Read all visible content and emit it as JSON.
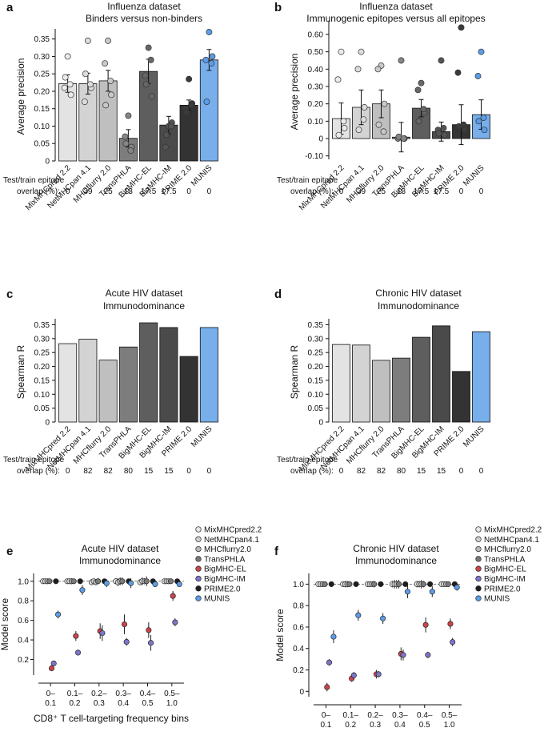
{
  "figure": {
    "overlap_label_line1": "Test/train epitope",
    "overlap_label_line2": "overlap (%):"
  },
  "chart_data": [
    {
      "id": "a",
      "letter": "a",
      "type": "bar",
      "title": [
        "Influenza dataset",
        "Binders versus non-binders"
      ],
      "ylabel": "Average precision",
      "ylim": [
        0,
        0.37
      ],
      "yticks": [
        0,
        0.05,
        0.1,
        0.15,
        0.2,
        0.25,
        0.3,
        0.35
      ],
      "ytick_labels": [
        "0",
        "0.05",
        "0.10",
        "0.15",
        "0.20",
        "0.25",
        "0.30",
        "0.35"
      ],
      "categories": [
        "MixMHCpred 2.2",
        "NetMHCpan 4.1",
        "MHCflurry 2.0",
        "TransPHLA",
        "BigMHC-EL",
        "BigMHC-IM",
        "PRIME 2.0",
        "MUNIS"
      ],
      "values": [
        0.222,
        0.222,
        0.23,
        0.065,
        0.257,
        0.103,
        0.16,
        0.29
      ],
      "errors": [
        0.025,
        0.03,
        0.03,
        0.025,
        0.035,
        0.025,
        0.015,
        0.03
      ],
      "points": [
        [
          0.3,
          0.21,
          0.19,
          0.24,
          0.22
        ],
        [
          0.345,
          0.17,
          0.21,
          0.25,
          0.22
        ],
        [
          0.345,
          0.28,
          0.19,
          0.16,
          0.23
        ],
        [
          0.13,
          0.07,
          0.04,
          0.05,
          0.03
        ],
        [
          0.325,
          0.245,
          0.185,
          0.22,
          0.29
        ],
        [
          0.1,
          0.04,
          0.11,
          0.075,
          0.1
        ],
        [
          0.235,
          0.15,
          0.165,
          0.14,
          0.16
        ],
        [
          0.37,
          0.29,
          0.3,
          0.17,
          0.28
        ]
      ],
      "colors": [
        "#e3e3e3",
        "#d3d3d3",
        "#bfbfbf",
        "#7d7d7d",
        "#5e5e5e",
        "#4a4a4a",
        "#333333",
        "#78aeea"
      ],
      "point_colors": [
        "#ebebeb",
        "#dcdcdc",
        "#c9c9c9",
        "#868686",
        "#676767",
        "#545454",
        "#3b3b3b",
        "#5b9de8"
      ],
      "overlap": [
        "0",
        "39",
        "25",
        "13",
        "17.5",
        "17.5",
        "0",
        "0"
      ]
    },
    {
      "id": "b",
      "letter": "b",
      "type": "bar",
      "title": [
        "Influenza dataset",
        "Immunogenic epitopes versus all epitopes"
      ],
      "ylabel": "Average precision",
      "ylim": [
        -0.12,
        0.66
      ],
      "yticks": [
        -0.1,
        0,
        0.1,
        0.2,
        0.3,
        0.4,
        0.5,
        0.6
      ],
      "ytick_labels": [
        "-0.10",
        "0",
        "0.10",
        "0.20",
        "0.30",
        "0.40",
        "0.50",
        "0.60"
      ],
      "categories": [
        "MixMHCpred 2.2",
        "NetMHCpan 4.1",
        "MHCflurry 2.0",
        "TransPHLA",
        "BigMHC-EL",
        "BigMHC-IM",
        "PRIME 2.0",
        "MUNIS"
      ],
      "values": [
        0.115,
        0.18,
        0.2,
        0.008,
        0.175,
        0.04,
        0.08,
        0.138
      ],
      "errors": [
        0.09,
        0.1,
        0.08,
        0.085,
        0.05,
        0.055,
        0.115,
        0.085
      ],
      "points": [
        [
          0.5,
          0.34,
          0.06,
          0.02,
          0.1
        ],
        [
          0.5,
          0.4,
          0.18,
          0.05,
          0.11
        ],
        [
          0.42,
          0.4,
          0.2,
          0.08,
          0.04
        ],
        [
          0.45,
          0.0,
          0.0,
          0.01,
          0.0
        ],
        [
          0.32,
          0.28,
          0.15,
          0.1,
          0.17
        ],
        [
          0.45,
          0.05,
          0.02,
          0.03,
          0.06
        ],
        [
          0.64,
          0.38,
          0.05,
          0.07,
          0.08
        ],
        [
          0.5,
          0.36,
          0.05,
          0.1,
          0.12
        ]
      ],
      "colors": [
        "#e3e3e3",
        "#d3d3d3",
        "#bfbfbf",
        "#7d7d7d",
        "#5e5e5e",
        "#4a4a4a",
        "#333333",
        "#78aeea"
      ],
      "point_colors": [
        "#ebebeb",
        "#dcdcdc",
        "#c9c9c9",
        "#868686",
        "#676767",
        "#545454",
        "#3b3b3b",
        "#5b9de8"
      ],
      "overlap": [
        "0",
        "39",
        "25",
        "13",
        "17.5",
        "17.5",
        "0",
        "0"
      ]
    },
    {
      "id": "c",
      "letter": "c",
      "type": "bar",
      "title": [
        "Acute HIV dataset",
        "Immunodominance"
      ],
      "ylabel": "Spearman R",
      "ylim": [
        0,
        0.36
      ],
      "yticks": [
        0,
        0.05,
        0.1,
        0.15,
        0.2,
        0.25,
        0.3,
        0.35
      ],
      "ytick_labels": [
        "0",
        "0.05",
        "0.10",
        "0.15",
        "0.20",
        "0.25",
        "0.30",
        "0.35"
      ],
      "categories": [
        "MixMHCpred 2.2",
        "NetMHCpan 4.1",
        "MHCflurry 2.0",
        "TransPHLA",
        "BigMHC-EL",
        "BigMHC-IM",
        "PRIME 2.0",
        "MUNIS"
      ],
      "values": [
        0.282,
        0.298,
        0.223,
        0.27,
        0.357,
        0.34,
        0.236,
        0.34
      ],
      "colors": [
        "#e3e3e3",
        "#d3d3d3",
        "#bfbfbf",
        "#7d7d7d",
        "#5e5e5e",
        "#4a4a4a",
        "#333333",
        "#78aeea"
      ],
      "overlap": [
        "0",
        "82",
        "82",
        "80",
        "15",
        "15",
        "0",
        "0"
      ]
    },
    {
      "id": "d",
      "letter": "d",
      "type": "bar",
      "title": [
        "Chronic HIV dataset",
        "Immunodominance"
      ],
      "ylabel": "Spearman R",
      "ylim": [
        0,
        0.36
      ],
      "yticks": [
        0,
        0.05,
        0.1,
        0.15,
        0.2,
        0.25,
        0.3,
        0.35
      ],
      "ytick_labels": [
        "0",
        "0.05",
        "0.10",
        "0.15",
        "0.20",
        "0.25",
        "0.30",
        "0.35"
      ],
      "categories": [
        "MixMHCpred 2.2",
        "NetMHCpan 4.1",
        "MHCflurry 2.0",
        "TransPHLA",
        "BigMHC-EL",
        "BigMHC-IM",
        "PRIME 2.0",
        "MUNIS"
      ],
      "values": [
        0.279,
        0.277,
        0.222,
        0.23,
        0.305,
        0.346,
        0.182,
        0.325
      ],
      "colors": [
        "#e3e3e3",
        "#d3d3d3",
        "#bfbfbf",
        "#7d7d7d",
        "#5e5e5e",
        "#4a4a4a",
        "#333333",
        "#78aeea"
      ],
      "overlap": [
        "0",
        "82",
        "82",
        "80",
        "15",
        "15",
        "0",
        "0"
      ]
    },
    {
      "id": "e",
      "letter": "e",
      "type": "scatter",
      "title": [
        "Acute HIV dataset",
        "Immunodominance"
      ],
      "ylabel": "Model score",
      "xlabel": "CD8⁺ T cell-targeting frequency bins",
      "ylim": [
        0.04,
        1.08
      ],
      "yticks": [
        0.2,
        0.4,
        0.6,
        0.8,
        1.0
      ],
      "ytick_labels": [
        "0.2",
        "0.4",
        "0.6",
        "0.8",
        "1.0"
      ],
      "bins": [
        [
          "0–",
          "0.1"
        ],
        [
          "0.1–",
          "0.2"
        ],
        [
          "0.2–",
          "0.3"
        ],
        [
          "0.3–",
          "0.4"
        ],
        [
          "0.4–",
          "0.5"
        ],
        [
          "0.5–",
          "1.0"
        ]
      ],
      "series": [
        {
          "name": "MixMHCpred2.2",
          "color": "#e6e6e6",
          "values": [
            1.0,
            1.0,
            0.99,
            1.0,
            0.99,
            1.0
          ],
          "errors": [
            0.01,
            0.02,
            0.03,
            0.03,
            0.03,
            0.01
          ]
        },
        {
          "name": "NetMHCpan4.1",
          "color": "#d2d2d2",
          "values": [
            1.0,
            1.0,
            1.0,
            0.99,
            1.0,
            1.0
          ],
          "errors": [
            0.01,
            0.02,
            0.02,
            0.04,
            0.04,
            0.01
          ]
        },
        {
          "name": "MHCflurry2.0",
          "color": "#b8b8b8",
          "values": [
            1.0,
            1.0,
            0.99,
            1.0,
            1.0,
            1.0
          ],
          "errors": [
            0.01,
            0.03,
            0.03,
            0.04,
            0.03,
            0.01
          ]
        },
        {
          "name": "TransPHLA",
          "color": "#7a7a7a",
          "values": [
            1.0,
            1.0,
            1.0,
            1.0,
            1.0,
            1.0
          ],
          "errors": [
            0.01,
            0.02,
            0.03,
            0.04,
            0.05,
            0.01
          ]
        },
        {
          "name": "BigMHC-EL",
          "color": "#c9454a",
          "values": [
            0.11,
            0.44,
            0.49,
            0.56,
            0.5,
            0.85
          ],
          "errors": [
            0.03,
            0.05,
            0.08,
            0.1,
            0.08,
            0.05
          ]
        },
        {
          "name": "BigMHC-IM",
          "color": "#7b76c9",
          "values": [
            0.16,
            0.27,
            0.47,
            0.38,
            0.37,
            0.58
          ],
          "errors": [
            0.02,
            0.03,
            0.08,
            0.04,
            0.08,
            0.04
          ]
        },
        {
          "name": "PRIME2.0",
          "color": "#1e1e1e",
          "values": [
            1.0,
            1.0,
            1.0,
            1.0,
            1.0,
            1.0
          ],
          "errors": [
            0.005,
            0.005,
            0.005,
            0.005,
            0.005,
            0.005
          ]
        },
        {
          "name": "MUNIS",
          "color": "#5b9de8",
          "values": [
            0.66,
            0.91,
            0.98,
            0.98,
            0.97,
            0.97
          ],
          "errors": [
            0.04,
            0.05,
            0.04,
            0.05,
            0.03,
            0.02
          ]
        }
      ]
    },
    {
      "id": "f",
      "letter": "f",
      "type": "scatter",
      "title": [
        "Chronic HIV dataset",
        "Immunodominance"
      ],
      "ylabel": "Model score",
      "xlabel": "CD8⁺ T cell-targeting frequency bins",
      "ylim": [
        -0.05,
        1.1
      ],
      "yticks": [
        0,
        0.2,
        0.4,
        0.6,
        0.8,
        1.0
      ],
      "ytick_labels": [
        "0",
        "0.2",
        "0.4",
        "0.6",
        "0.8",
        "1.0"
      ],
      "bins": [
        [
          "0–",
          "0.1"
        ],
        [
          "0.1–",
          "0.2"
        ],
        [
          "0.2–",
          "0.3"
        ],
        [
          "0.3–",
          "0.4"
        ],
        [
          "0.4–",
          "0.5"
        ],
        [
          "0.5–",
          "1.0"
        ]
      ],
      "series": [
        {
          "name": "MixMHCpred2.2",
          "color": "#e6e6e6",
          "values": [
            1.0,
            1.0,
            1.0,
            1.0,
            1.0,
            1.0
          ],
          "errors": [
            0.01,
            0.02,
            0.02,
            0.03,
            0.03,
            0.01
          ]
        },
        {
          "name": "NetMHCpan4.1",
          "color": "#d2d2d2",
          "values": [
            1.0,
            1.0,
            1.0,
            1.0,
            1.0,
            1.0
          ],
          "errors": [
            0.01,
            0.03,
            0.02,
            0.04,
            0.03,
            0.01
          ]
        },
        {
          "name": "MHCflurry2.0",
          "color": "#b8b8b8",
          "values": [
            1.0,
            1.0,
            1.0,
            1.0,
            1.0,
            1.0
          ],
          "errors": [
            0.01,
            0.03,
            0.02,
            0.04,
            0.04,
            0.01
          ]
        },
        {
          "name": "TransPHLA",
          "color": "#7a7a7a",
          "values": [
            1.0,
            1.0,
            1.0,
            1.0,
            1.0,
            1.0
          ],
          "errors": [
            0.01,
            0.02,
            0.03,
            0.04,
            0.03,
            0.02
          ]
        },
        {
          "name": "BigMHC-EL",
          "color": "#c9454a",
          "values": [
            0.04,
            0.12,
            0.16,
            0.35,
            0.62,
            0.63
          ],
          "errors": [
            0.04,
            0.03,
            0.04,
            0.06,
            0.07,
            0.05
          ]
        },
        {
          "name": "BigMHC-IM",
          "color": "#7b76c9",
          "values": [
            0.27,
            0.15,
            0.16,
            0.34,
            0.34,
            0.46
          ],
          "errors": [
            0.03,
            0.03,
            0.03,
            0.05,
            0.03,
            0.04
          ]
        },
        {
          "name": "PRIME2.0",
          "color": "#1e1e1e",
          "values": [
            1.0,
            1.0,
            1.0,
            1.0,
            1.0,
            1.0
          ],
          "errors": [
            0.005,
            0.005,
            0.005,
            0.005,
            0.005,
            0.005
          ]
        },
        {
          "name": "MUNIS",
          "color": "#5b9de8",
          "values": [
            0.51,
            0.71,
            0.68,
            0.93,
            0.93,
            0.97
          ],
          "errors": [
            0.06,
            0.05,
            0.05,
            0.06,
            0.05,
            0.03
          ]
        }
      ]
    }
  ]
}
